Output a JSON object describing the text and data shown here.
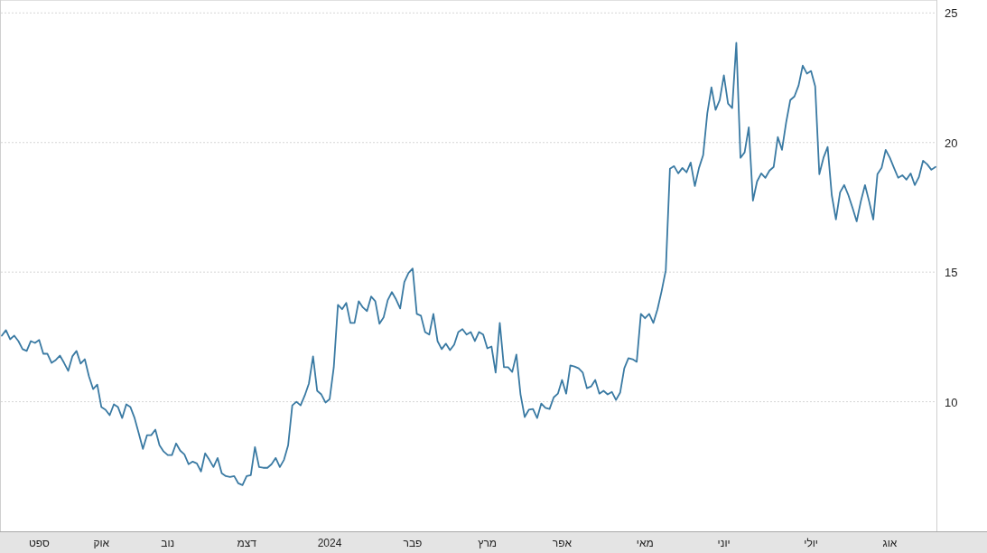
{
  "chart_data": {
    "type": "line",
    "grid": "y",
    "marker": "none",
    "line_style": "solid",
    "ylim": [
      5,
      25.5
    ],
    "yticks": [
      10,
      15,
      20,
      25
    ],
    "categories": [
      null,
      null,
      null,
      null,
      null,
      null,
      null,
      null,
      null,
      "ספט",
      null,
      null,
      null,
      null,
      null,
      null,
      null,
      null,
      null,
      null,
      null,
      null,
      null,
      null,
      "אוק",
      null,
      null,
      null,
      null,
      null,
      null,
      null,
      null,
      null,
      null,
      null,
      null,
      null,
      null,
      null,
      "נוב",
      null,
      null,
      null,
      null,
      null,
      null,
      null,
      null,
      null,
      null,
      null,
      null,
      null,
      null,
      null,
      null,
      null,
      null,
      "דצמ",
      null,
      null,
      null,
      null,
      null,
      null,
      null,
      null,
      null,
      null,
      null,
      null,
      null,
      null,
      null,
      null,
      null,
      null,
      null,
      "2024",
      null,
      null,
      null,
      null,
      null,
      null,
      null,
      null,
      null,
      null,
      null,
      null,
      null,
      null,
      null,
      null,
      null,
      null,
      null,
      "פבר",
      null,
      null,
      null,
      null,
      null,
      null,
      null,
      null,
      null,
      null,
      null,
      null,
      null,
      null,
      null,
      null,
      null,
      "מרץ",
      null,
      null,
      null,
      null,
      null,
      null,
      null,
      null,
      null,
      null,
      null,
      null,
      null,
      null,
      null,
      null,
      null,
      "אפר",
      null,
      null,
      null,
      null,
      null,
      null,
      null,
      null,
      null,
      null,
      null,
      null,
      null,
      null,
      null,
      null,
      null,
      null,
      null,
      "מאי",
      null,
      null,
      null,
      null,
      null,
      null,
      null,
      null,
      null,
      null,
      null,
      null,
      null,
      null,
      null,
      null,
      null,
      null,
      "יוני",
      null,
      null,
      null,
      null,
      null,
      null,
      null,
      null,
      null,
      null,
      null,
      null,
      null,
      null,
      null,
      null,
      null,
      null,
      null,
      null,
      "יולי",
      null,
      null,
      null,
      null,
      null,
      null,
      null,
      null,
      null,
      null,
      null,
      null,
      null,
      null,
      null,
      null,
      null,
      null,
      "אוג",
      null,
      null,
      null,
      null,
      null,
      null,
      null,
      null,
      null,
      null,
      null
    ],
    "series": [
      {
        "color": "#3a7aa3",
        "values": [
          12.55,
          12.76,
          12.41,
          12.55,
          12.34,
          12.03,
          11.96,
          12.34,
          12.27,
          12.38,
          11.85,
          11.85,
          11.5,
          11.61,
          11.78,
          11.5,
          11.19,
          11.75,
          11.96,
          11.47,
          11.64,
          10.98,
          10.49,
          10.66,
          9.79,
          9.69,
          9.48,
          9.9,
          9.79,
          9.37,
          9.9,
          9.79,
          9.37,
          8.78,
          8.18,
          8.71,
          8.71,
          8.92,
          8.32,
          8.08,
          7.94,
          7.94,
          8.39,
          8.11,
          7.97,
          7.59,
          7.69,
          7.62,
          7.31,
          8.01,
          7.76,
          7.48,
          7.83,
          7.24,
          7.13,
          7.1,
          7.13,
          6.85,
          6.78,
          7.13,
          7.17,
          8.25,
          7.48,
          7.45,
          7.45,
          7.59,
          7.83,
          7.48,
          7.76,
          8.32,
          9.86,
          10.0,
          9.86,
          10.24,
          10.7,
          11.75,
          10.42,
          10.28,
          9.97,
          10.1,
          11.33,
          13.74,
          13.57,
          13.81,
          13.04,
          13.04,
          13.88,
          13.64,
          13.5,
          14.06,
          13.88,
          13.01,
          13.25,
          13.92,
          14.23,
          13.95,
          13.6,
          14.62,
          14.97,
          15.14,
          13.39,
          13.32,
          12.69,
          12.59,
          13.39,
          12.34,
          12.03,
          12.24,
          11.99,
          12.2,
          12.69,
          12.8,
          12.59,
          12.69,
          12.34,
          12.69,
          12.59,
          12.06,
          12.13,
          11.12,
          13.04,
          11.33,
          11.33,
          11.15,
          11.82,
          10.28,
          9.41,
          9.69,
          9.72,
          9.37,
          9.93,
          9.76,
          9.72,
          10.17,
          10.31,
          10.84,
          10.31,
          11.4,
          11.36,
          11.29,
          11.12,
          10.52,
          10.59,
          10.84,
          10.31,
          10.42,
          10.28,
          10.38,
          10.07,
          10.35,
          11.29,
          11.68,
          11.64,
          11.54,
          13.39,
          13.22,
          13.39,
          13.04,
          13.57,
          14.27,
          15.07,
          18.99,
          19.09,
          18.81,
          19.02,
          18.85,
          19.23,
          18.32,
          19.02,
          19.51,
          21.12,
          22.13,
          21.26,
          21.64,
          22.59,
          21.5,
          21.33,
          23.85,
          19.41,
          19.62,
          20.59,
          17.76,
          18.5,
          18.81,
          18.64,
          18.92,
          19.06,
          20.21,
          19.72,
          20.77,
          21.64,
          21.78,
          22.2,
          22.97,
          22.66,
          22.76,
          22.17,
          18.78,
          19.41,
          19.83,
          17.97,
          17.03,
          18.08,
          18.36,
          17.97,
          17.48,
          16.96,
          17.73,
          18.36,
          17.73,
          17.03,
          18.78,
          19.02,
          19.72,
          19.41,
          19.02,
          18.64,
          18.74,
          18.57,
          18.81,
          18.36,
          18.67,
          19.3,
          19.16,
          18.95,
          19.06
        ]
      }
    ]
  }
}
